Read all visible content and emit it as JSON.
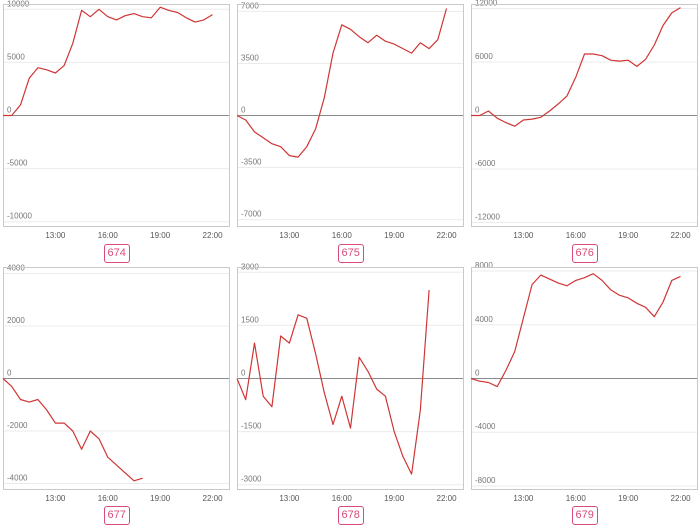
{
  "colors": {
    "line": "#d03535",
    "accent": "#d94b78"
  },
  "chart_data": [
    {
      "type": "line",
      "title": "674",
      "x_ticks": [
        "13:00",
        "16:00",
        "19:00",
        "22:00"
      ],
      "x_range": [
        "10:00",
        "23:00"
      ],
      "y_ticks": [
        10000,
        5000,
        0,
        -5000,
        -10000
      ],
      "ylim": [
        -10500,
        10500
      ],
      "grid": true,
      "x": [
        "10:00",
        "10:30",
        "11:00",
        "11:30",
        "12:00",
        "12:30",
        "13:00",
        "13:30",
        "14:00",
        "14:30",
        "15:00",
        "15:30",
        "16:00",
        "16:30",
        "17:00",
        "17:30",
        "18:00",
        "18:30",
        "19:00",
        "19:30",
        "20:00",
        "20:30",
        "21:00",
        "21:30",
        "22:00"
      ],
      "values": [
        0,
        0,
        1000,
        3500,
        4500,
        4300,
        4000,
        4700,
        6800,
        9900,
        9300,
        10000,
        9300,
        9000,
        9400,
        9600,
        9300,
        9200,
        10200,
        9900,
        9700,
        9200,
        8800,
        9000,
        9500
      ]
    },
    {
      "type": "line",
      "title": "675",
      "x_ticks": [
        "13:00",
        "16:00",
        "19:00",
        "22:00"
      ],
      "x_range": [
        "10:00",
        "23:00"
      ],
      "y_ticks": [
        7000,
        3500,
        0,
        -3500,
        -7000
      ],
      "ylim": [
        -7500,
        7500
      ],
      "grid": true,
      "x": [
        "10:00",
        "10:30",
        "11:00",
        "11:30",
        "12:00",
        "12:30",
        "13:00",
        "13:30",
        "14:00",
        "14:30",
        "15:00",
        "15:30",
        "16:00",
        "16:30",
        "17:00",
        "17:30",
        "18:00",
        "18:30",
        "19:00",
        "19:30",
        "20:00",
        "20:30",
        "21:00",
        "21:30",
        "22:00"
      ],
      "values": [
        0,
        -300,
        -1100,
        -1500,
        -1900,
        -2100,
        -2700,
        -2800,
        -2100,
        -900,
        1200,
        4200,
        6100,
        5800,
        5300,
        4900,
        5400,
        5000,
        4800,
        4500,
        4200,
        4900,
        4500,
        5100,
        7200
      ]
    },
    {
      "type": "line",
      "title": "676",
      "x_ticks": [
        "13:00",
        "16:00",
        "19:00",
        "22:00"
      ],
      "x_range": [
        "10:00",
        "23:00"
      ],
      "y_ticks": [
        12000,
        6000,
        0,
        -6000,
        -12000
      ],
      "ylim": [
        -12500,
        12500
      ],
      "grid": true,
      "x": [
        "10:00",
        "10:30",
        "11:00",
        "11:30",
        "12:00",
        "12:30",
        "13:00",
        "13:30",
        "14:00",
        "14:30",
        "15:00",
        "15:30",
        "16:00",
        "16:30",
        "17:00",
        "17:30",
        "18:00",
        "18:30",
        "19:00",
        "19:30",
        "20:00",
        "20:30",
        "21:00",
        "21:30",
        "22:00"
      ],
      "values": [
        0,
        0,
        500,
        -300,
        -800,
        -1200,
        -500,
        -400,
        -200,
        500,
        1300,
        2200,
        4300,
        6900,
        6900,
        6700,
        6200,
        6100,
        6200,
        5500,
        6300,
        7900,
        10100,
        11500,
        12100
      ]
    },
    {
      "type": "line",
      "title": "677",
      "x_ticks": [
        "13:00",
        "16:00",
        "19:00",
        "22:00"
      ],
      "x_range": [
        "10:00",
        "23:00"
      ],
      "y_ticks": [
        4000,
        2000,
        0,
        -2000,
        -4000
      ],
      "ylim": [
        -4250,
        4250
      ],
      "grid": true,
      "x": [
        "10:00",
        "10:30",
        "11:00",
        "11:30",
        "12:00",
        "12:30",
        "13:00",
        "13:30",
        "14:00",
        "14:30",
        "15:00",
        "15:30",
        "16:00",
        "16:30",
        "17:00",
        "17:30",
        "18:00"
      ],
      "values": [
        0,
        -300,
        -800,
        -900,
        -800,
        -1200,
        -1700,
        -1700,
        -2000,
        -2700,
        -2000,
        -2300,
        -3000,
        -3300,
        -3600,
        -3900,
        -3800
      ]
    },
    {
      "type": "line",
      "title": "678",
      "x_ticks": [
        "13:00",
        "16:00",
        "19:00",
        "22:00"
      ],
      "x_range": [
        "10:00",
        "23:00"
      ],
      "y_ticks": [
        3000,
        1500,
        0,
        -1500,
        -3000
      ],
      "ylim": [
        -3150,
        3150
      ],
      "grid": true,
      "x": [
        "10:00",
        "10:30",
        "11:00",
        "11:30",
        "12:00",
        "12:30",
        "13:00",
        "13:30",
        "14:00",
        "14:30",
        "15:00",
        "15:30",
        "16:00",
        "16:30",
        "17:00",
        "17:30",
        "18:00",
        "18:30",
        "19:00",
        "19:30",
        "20:00",
        "20:30",
        "21:00"
      ],
      "values": [
        0,
        -600,
        1000,
        -500,
        -800,
        1200,
        1000,
        1800,
        1700,
        700,
        -400,
        -1300,
        -500,
        -1400,
        600,
        200,
        -300,
        -500,
        -1500,
        -2200,
        -2700,
        -900,
        2500
      ]
    },
    {
      "type": "line",
      "title": "679",
      "x_ticks": [
        "13:00",
        "16:00",
        "19:00",
        "22:00"
      ],
      "x_range": [
        "10:00",
        "23:00"
      ],
      "y_ticks": [
        8000,
        4000,
        0,
        -4000,
        -8000
      ],
      "ylim": [
        -8300,
        8300
      ],
      "grid": true,
      "x": [
        "10:00",
        "10:30",
        "11:00",
        "11:30",
        "12:00",
        "12:30",
        "13:00",
        "13:30",
        "14:00",
        "14:30",
        "15:00",
        "15:30",
        "16:00",
        "16:30",
        "17:00",
        "17:30",
        "18:00",
        "18:30",
        "19:00",
        "19:30",
        "20:00",
        "20:30",
        "21:00",
        "21:30",
        "22:00"
      ],
      "values": [
        0,
        -200,
        -300,
        -600,
        600,
        2000,
        4500,
        7000,
        7700,
        7400,
        7100,
        6900,
        7300,
        7500,
        7800,
        7300,
        6600,
        6200,
        6000,
        5600,
        5300,
        4600,
        5700,
        7300,
        7600
      ]
    }
  ]
}
